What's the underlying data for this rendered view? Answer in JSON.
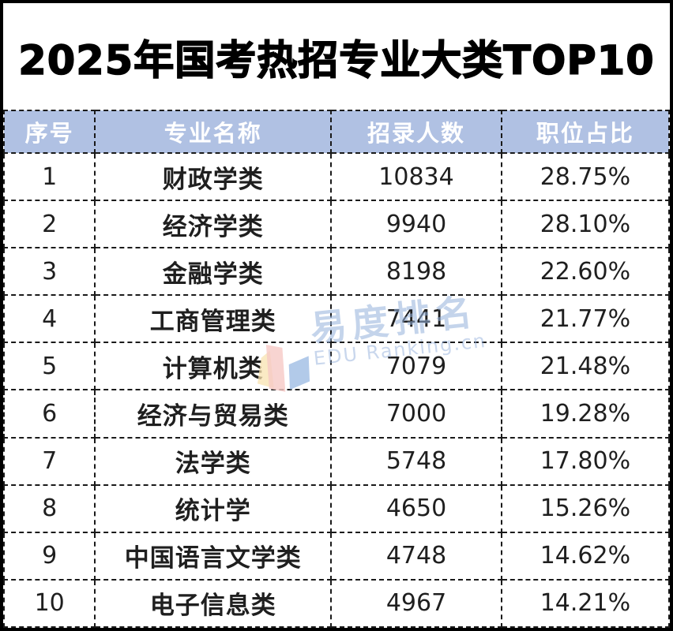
{
  "title": "2025年国考热招专业大类TOP10",
  "table": {
    "headers": [
      "序号",
      "专业名称",
      "招录人数",
      "职位占比"
    ],
    "rows": [
      {
        "rank": "1",
        "major": "财政学类",
        "count": "10834",
        "share": "28.75%"
      },
      {
        "rank": "2",
        "major": "经济学类",
        "count": "9940",
        "share": "28.10%"
      },
      {
        "rank": "3",
        "major": "金融学类",
        "count": "8198",
        "share": "22.60%"
      },
      {
        "rank": "4",
        "major": "工商管理类",
        "count": "7441",
        "share": "21.77%"
      },
      {
        "rank": "5",
        "major": "计算机类",
        "count": "7079",
        "share": "21.48%"
      },
      {
        "rank": "6",
        "major": "经济与贸易类",
        "count": "7000",
        "share": "19.28%"
      },
      {
        "rank": "7",
        "major": "法学类",
        "count": "5748",
        "share": "17.80%"
      },
      {
        "rank": "8",
        "major": "统计学",
        "count": "4650",
        "share": "15.26%"
      },
      {
        "rank": "9",
        "major": "中国语言文学类",
        "count": "4748",
        "share": "14.62%"
      },
      {
        "rank": "10",
        "major": "电子信息类",
        "count": "4967",
        "share": "14.21%"
      }
    ]
  },
  "watermark": {
    "cn": "易度排名",
    "en": "EDU Ranking.cn"
  },
  "colors": {
    "header_bg": "#b0c1e3",
    "header_text": "#ffffff",
    "border": "#1a1a1a",
    "title_text": "#000000",
    "watermark_blue": "#94b0db",
    "logo_yellow": "#f8e3b0",
    "logo_pink": "#f6c9c6",
    "logo_blue": "#88aedd"
  }
}
